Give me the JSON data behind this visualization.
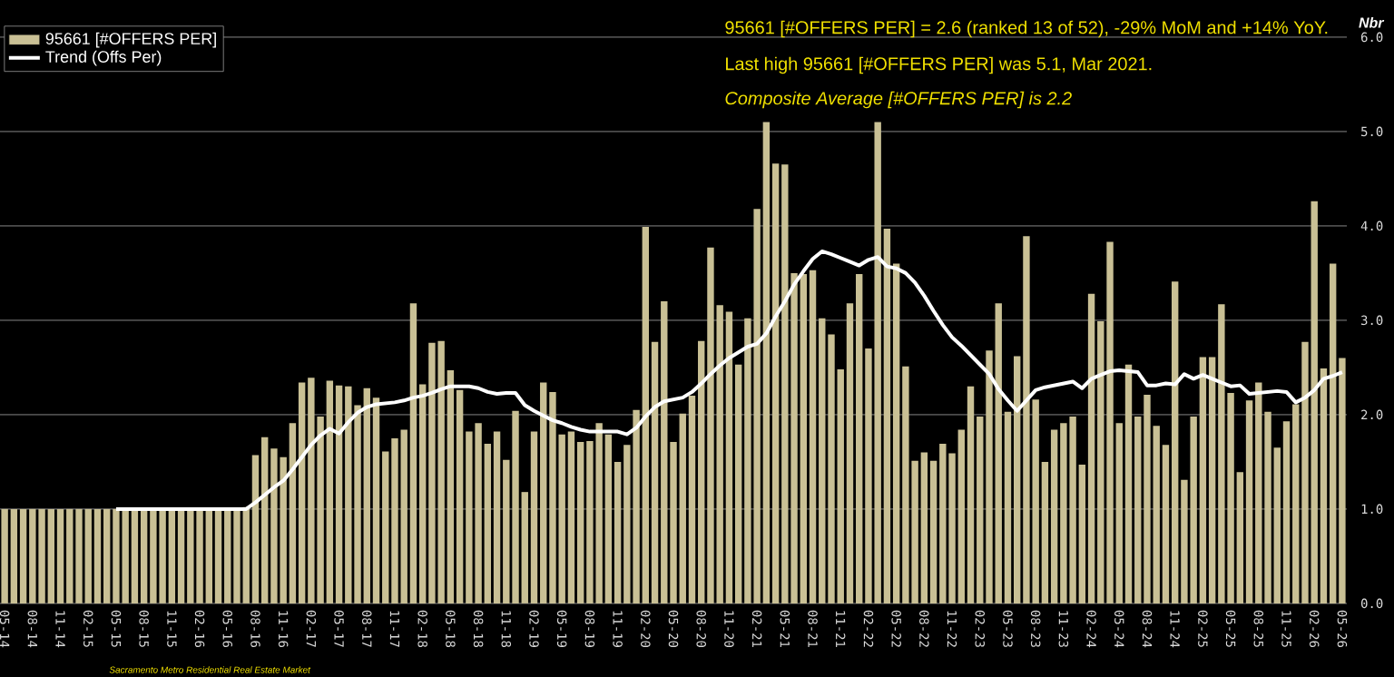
{
  "chart_data": {
    "type": "bar",
    "ylabel": "Nbr",
    "annotations": [
      "95661 [#OFFERS PER] = 2.6 (ranked 13 of 52), -29% MoM and +14% YoY.",
      "Last high 95661 [#OFFERS PER] was 5.1, Mar 2021.",
      "Composite Average [#OFFERS PER] is 2.2",
      "Sacramento Metro Residential Real Estate Market"
    ],
    "categories": [
      "05-14",
      null,
      null,
      "08-14",
      null,
      null,
      "11-14",
      null,
      null,
      "02-15",
      null,
      null,
      "05-15",
      null,
      null,
      "08-15",
      null,
      null,
      "11-15",
      null,
      null,
      "02-16",
      null,
      null,
      "05-16",
      null,
      null,
      "08-16",
      null,
      null,
      "11-16",
      null,
      null,
      "02-17",
      null,
      null,
      "05-17",
      null,
      null,
      "08-17",
      null,
      null,
      "11-17",
      null,
      null,
      "02-18",
      null,
      null,
      "05-18",
      null,
      null,
      "08-18",
      null,
      null,
      "11-18",
      null,
      null,
      "02-19",
      null,
      null,
      "05-19",
      null,
      null,
      "08-19",
      null,
      null,
      "11-19",
      null,
      null,
      "02-20",
      null,
      null,
      "05-20",
      null,
      null,
      "08-20",
      null,
      null,
      "11-20",
      null,
      null,
      "02-21",
      null,
      null,
      "05-21",
      null,
      null,
      "08-21",
      null,
      null,
      "11-21",
      null,
      null,
      "02-22",
      null,
      null,
      "05-22",
      null,
      null,
      "08-22",
      null,
      null,
      "11-22",
      null,
      null,
      "02-23",
      null,
      null,
      "05-23",
      null,
      null,
      "08-23",
      null,
      null,
      "11-23",
      null,
      null,
      "02-24",
      null,
      null,
      "05-24",
      null,
      null,
      "08-24",
      null,
      null,
      "11-24",
      null,
      null,
      "02-25",
      null,
      null,
      "05-25",
      null,
      null,
      "08-25",
      null,
      null,
      "11-25",
      null,
      null,
      "02-26",
      null,
      null,
      "05-26"
    ],
    "series": [
      {
        "name": "95661 [#OFFERS PER]",
        "type": "bar",
        "color": "#c9c095",
        "values": [
          1,
          1,
          1,
          1,
          1,
          1,
          1,
          1,
          1,
          1,
          1,
          1,
          1,
          1,
          1,
          1,
          1,
          1,
          1,
          1,
          1,
          1,
          1,
          1,
          1,
          1,
          1.02,
          1.57,
          1.76,
          1.64,
          1.55,
          1.91,
          2.34,
          2.39,
          1.98,
          2.36,
          2.31,
          2.3,
          2.1,
          2.28,
          2.18,
          1.61,
          1.75,
          1.84,
          3.18,
          2.32,
          2.76,
          2.78,
          2.47,
          2.26,
          1.82,
          1.91,
          1.69,
          1.82,
          1.52,
          2.04,
          1.18,
          1.82,
          2.34,
          2.24,
          1.79,
          1.82,
          1.71,
          1.72,
          1.91,
          1.79,
          1.5,
          1.68,
          2.05,
          3.99,
          2.77,
          3.2,
          1.71,
          2.01,
          2.2,
          2.78,
          3.77,
          3.16,
          3.09,
          2.53,
          3.02,
          4.18,
          5.1,
          4.66,
          4.65,
          3.5,
          3.49,
          3.53,
          3.02,
          2.85,
          2.48,
          3.18,
          3.49,
          2.7,
          5.1,
          3.97,
          3.6,
          2.51,
          1.51,
          1.6,
          1.51,
          1.69,
          1.59,
          1.84,
          2.3,
          1.98,
          2.68,
          3.18,
          2.03,
          2.62,
          3.89,
          2.16,
          1.5,
          1.84,
          1.91,
          1.98,
          1.47,
          3.28,
          2.99,
          3.83,
          1.91,
          2.53,
          1.98,
          2.21,
          1.88,
          1.68,
          3.41,
          1.31,
          1.98,
          2.61,
          2.61,
          3.17,
          2.23,
          1.39,
          2.15,
          2.34,
          2.03,
          1.65,
          1.93,
          2.11,
          2.77,
          4.26,
          2.49,
          3.6,
          2.6
        ]
      },
      {
        "name": "Trend (Offs Per)",
        "type": "line",
        "color": "#ffffff",
        "values": [
          null,
          null,
          null,
          null,
          null,
          null,
          null,
          null,
          null,
          null,
          null,
          null,
          1,
          1,
          1,
          1,
          1,
          1,
          1,
          1,
          1,
          1,
          1,
          1,
          1,
          1,
          1,
          1.07,
          1.15,
          1.23,
          1.3,
          1.42,
          1.55,
          1.68,
          1.78,
          1.85,
          1.8,
          1.92,
          2.02,
          2.08,
          2.11,
          2.12,
          2.13,
          2.15,
          2.18,
          2.2,
          2.23,
          2.27,
          2.3,
          2.3,
          2.3,
          2.28,
          2.24,
          2.22,
          2.23,
          2.23,
          2.1,
          2.04,
          1.99,
          1.94,
          1.91,
          1.87,
          1.84,
          1.82,
          1.82,
          1.82,
          1.82,
          1.79,
          1.86,
          1.98,
          2.08,
          2.14,
          2.16,
          2.18,
          2.24,
          2.33,
          2.43,
          2.52,
          2.6,
          2.66,
          2.72,
          2.75,
          2.86,
          3.04,
          3.2,
          3.38,
          3.52,
          3.65,
          3.73,
          3.7,
          3.66,
          3.62,
          3.58,
          3.64,
          3.67,
          3.57,
          3.55,
          3.5,
          3.4,
          3.26,
          3.1,
          2.95,
          2.82,
          2.73,
          2.63,
          2.53,
          2.43,
          2.27,
          2.15,
          2.04,
          2.15,
          2.26,
          2.29,
          2.31,
          2.33,
          2.35,
          2.28,
          2.38,
          2.42,
          2.46,
          2.47,
          2.46,
          2.45,
          2.31,
          2.31,
          2.33,
          2.32,
          2.43,
          2.38,
          2.42,
          2.38,
          2.34,
          2.3,
          2.31,
          2.22,
          2.23,
          2.24,
          2.25,
          2.24,
          2.13,
          2.18,
          2.26,
          2.38,
          2.41,
          2.45
        ]
      }
    ],
    "ylim": [
      0,
      6
    ],
    "yticks": [
      {
        "value": 0,
        "label": "0.0"
      },
      {
        "value": 1,
        "label": "1.0"
      },
      {
        "value": 2,
        "label": "2.0"
      },
      {
        "value": 3,
        "label": "3.0"
      },
      {
        "value": 4,
        "label": "4.0"
      },
      {
        "value": 5,
        "label": "5.0"
      },
      {
        "value": 6,
        "label": "6.0"
      }
    ],
    "grid": "y",
    "legend": "top left"
  }
}
